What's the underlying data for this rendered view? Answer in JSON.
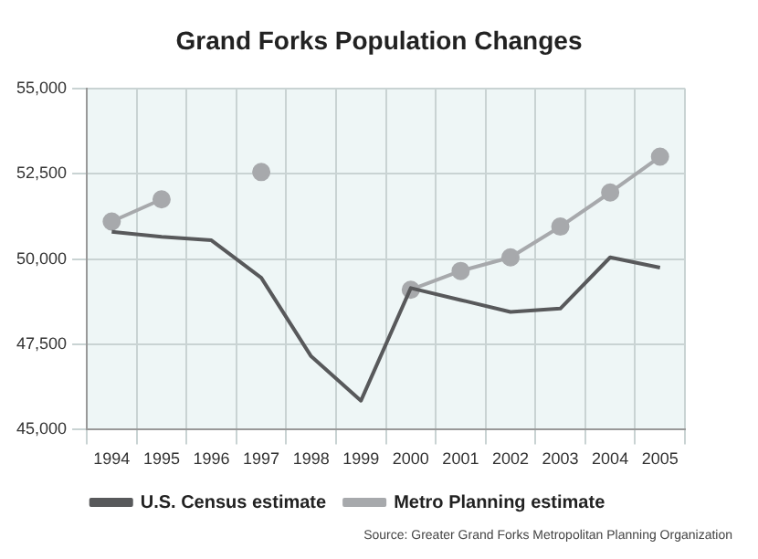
{
  "chart_data": {
    "type": "line",
    "title": "Grand Forks Population Changes",
    "categories": [
      "1994",
      "1995",
      "1996",
      "1997",
      "1998",
      "1999",
      "2000",
      "2001",
      "2002",
      "2003",
      "2004",
      "2005"
    ],
    "series": [
      {
        "name": "Metro Planning estimate",
        "color": "#a7a9ac",
        "marker": "circle",
        "values": [
          51100,
          51750,
          null,
          52550,
          null,
          null,
          49100,
          49650,
          50050,
          50950,
          51950,
          53000
        ]
      },
      {
        "name": "U.S. Census estimate",
        "color": "#58595b",
        "marker": "none",
        "values": [
          50800,
          50650,
          50550,
          49450,
          47150,
          45850,
          49150,
          48800,
          48450,
          48550,
          50050,
          49750
        ]
      }
    ],
    "ylim": [
      45000,
      55000
    ],
    "yticks": [
      {
        "value": 45000,
        "label": "45,000"
      },
      {
        "value": 47500,
        "label": "47,500"
      },
      {
        "value": 50000,
        "label": "50,000"
      },
      {
        "value": 52500,
        "label": "52,500"
      },
      {
        "value": 55000,
        "label": "55,000"
      }
    ],
    "grid": true,
    "legend": "bottom",
    "annotations": [
      "Source: Greater Grand Forks Metropolitan Planning Organization"
    ]
  }
}
